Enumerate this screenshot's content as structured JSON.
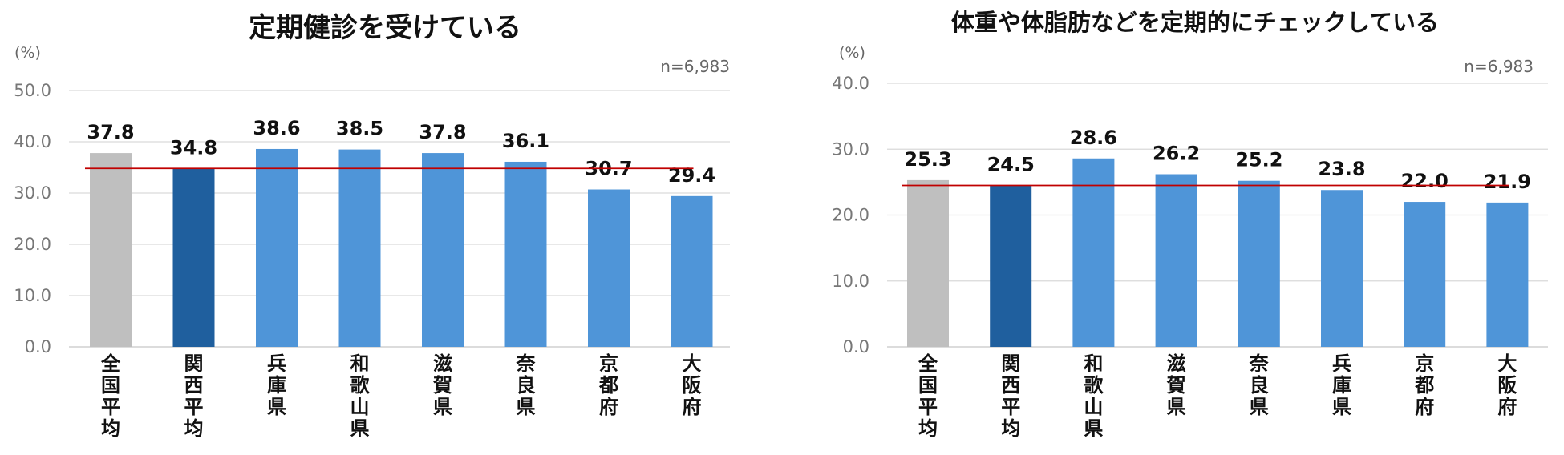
{
  "chart_data": [
    {
      "type": "bar",
      "title": "定期健診を受けている",
      "ylabel": "(%)",
      "note": "n=6,983",
      "categories": [
        "全国平均",
        "関西平均",
        "兵庫県",
        "和歌山県",
        "滋賀県",
        "奈良県",
        "京都府",
        "大阪府"
      ],
      "values": [
        37.8,
        34.8,
        38.6,
        38.5,
        37.8,
        36.1,
        30.7,
        29.4
      ],
      "value_labels": [
        "37.8",
        "34.8",
        "38.6",
        "38.5",
        "37.8",
        "36.1",
        "30.7",
        "29.4"
      ],
      "yticks": [
        "0.0",
        "10.0",
        "20.0",
        "30.0",
        "40.0",
        "50.0"
      ],
      "ylim": [
        0,
        50
      ],
      "reference_line": 34.8,
      "grid": true,
      "colors": [
        "#bfbfbf",
        "#1f5f9e",
        "#4f95d8",
        "#4f95d8",
        "#4f95d8",
        "#4f95d8",
        "#4f95d8",
        "#4f95d8"
      ],
      "reference_color": "#c00000"
    },
    {
      "type": "bar",
      "title": "体重や体脂肪などを定期的にチェックしている",
      "ylabel": "(%)",
      "note": "n=6,983",
      "categories": [
        "全国平均",
        "関西平均",
        "和歌山県",
        "滋賀県",
        "奈良県",
        "兵庫県",
        "京都府",
        "大阪府"
      ],
      "values": [
        25.3,
        24.5,
        28.6,
        26.2,
        25.2,
        23.8,
        22.0,
        21.9
      ],
      "value_labels": [
        "25.3",
        "24.5",
        "28.6",
        "26.2",
        "25.2",
        "23.8",
        "22.0",
        "21.9"
      ],
      "yticks": [
        "0.0",
        "10.0",
        "20.0",
        "30.0",
        "40.0"
      ],
      "ylim": [
        0,
        40
      ],
      "reference_line": 24.5,
      "grid": true,
      "colors": [
        "#bfbfbf",
        "#1f5f9e",
        "#4f95d8",
        "#4f95d8",
        "#4f95d8",
        "#4f95d8",
        "#4f95d8",
        "#4f95d8"
      ],
      "reference_color": "#c00000"
    }
  ]
}
